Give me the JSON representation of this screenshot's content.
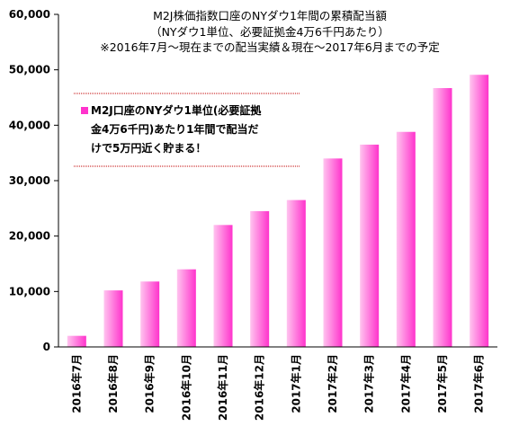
{
  "chart_data": {
    "type": "bar",
    "title": "M2J株価指数口座のNYダウ1年間の累積配当額",
    "subtitle_lines": [
      "（NYダウ1単位、必要証拠金4万6千円あたり）",
      "※2016年7月～現在までの配当実績＆現在～2017年6月までの予定"
    ],
    "categories": [
      "2016年7月",
      "2016年8月",
      "2016年9月",
      "2016年10月",
      "2016年11月",
      "2016年12月",
      "2017年1月",
      "2017年2月",
      "2017年3月",
      "2017年4月",
      "2017年5月",
      "2017年6月"
    ],
    "series": [
      {
        "name": "",
        "values": [
          2000,
          10200,
          11800,
          14000,
          22000,
          24500,
          26500,
          34000,
          36500,
          38800,
          46700,
          49100
        ]
      }
    ],
    "ylim": [
      0,
      60000
    ],
    "ytick_labels": [
      "0",
      "10,000",
      "20,000",
      "30,000",
      "40,000",
      "50,000",
      "60,000"
    ],
    "ytick_values": [
      0,
      10000,
      20000,
      30000,
      40000,
      50000,
      60000
    ],
    "grid": false,
    "legend_lines": [
      "M2J口座のNYダウ1単位(必要証拠",
      "金4万6千円)あたり1年間で配当だ",
      "けで5万円近く貯まる！"
    ],
    "legend_placement": "upper-left",
    "colors": {
      "bar_light": "#ffc4ef",
      "bar_dark": "#ff33cc",
      "legend_rule": "#c00000"
    }
  }
}
